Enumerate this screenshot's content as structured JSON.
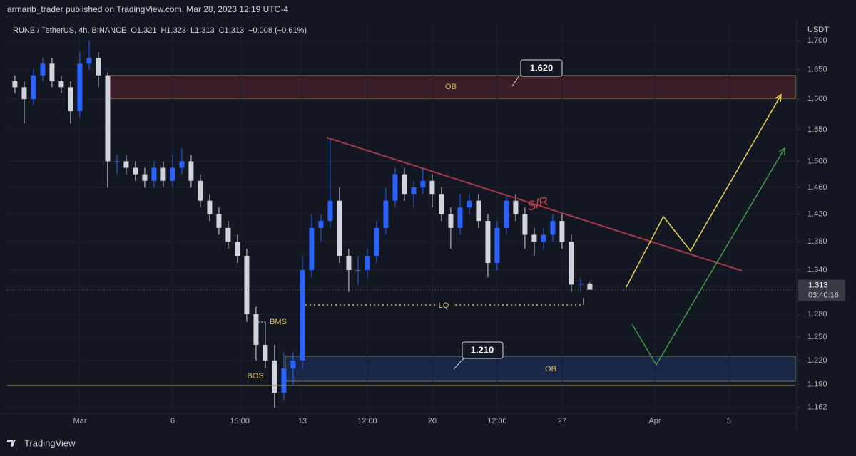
{
  "header": {
    "published": "armanb_trader published on TradingView.com, Mar 28, 2023 12:19 UTC-4"
  },
  "chart_data": {
    "type": "candlestick",
    "symbol": "RUNE / TetherUS, 4h, BINANCE",
    "ohlc_legend": [
      "O1.321",
      "H1.323",
      "L1.313",
      "C1.313",
      "−0.008 (−0.61%)"
    ],
    "currency": "USDT",
    "x": [
      -3.5,
      -3,
      -2.5,
      -2,
      -1.5,
      -1,
      -0.5,
      0,
      0.5,
      1,
      1.5,
      2,
      2.5,
      3,
      3.5,
      4,
      4.5,
      5,
      5.5,
      6,
      6.5,
      7,
      7.5,
      8,
      8.5,
      9,
      9.5,
      10,
      10.5,
      11,
      11.5,
      12,
      12.5,
      13,
      13.5,
      14,
      14.5,
      15,
      15.5,
      16,
      16.5,
      17,
      17.5,
      18,
      18.5,
      19,
      19.5,
      20,
      20.5,
      21,
      21.5,
      22,
      22.5,
      23,
      23.5,
      24,
      24.5,
      25,
      25.5,
      26,
      26.5,
      27,
      27.5
    ],
    "open": [
      1.63,
      1.62,
      1.6,
      1.64,
      1.66,
      1.63,
      1.62,
      1.58,
      1.66,
      1.67,
      1.64,
      1.5,
      1.5,
      1.49,
      1.48,
      1.47,
      1.49,
      1.47,
      1.49,
      1.5,
      1.47,
      1.44,
      1.42,
      1.4,
      1.38,
      1.36,
      1.28,
      1.24,
      1.22,
      1.18,
      1.21,
      1.22,
      1.34,
      1.4,
      1.41,
      1.44,
      1.36,
      1.34,
      1.34,
      1.36,
      1.4,
      1.44,
      1.48,
      1.45,
      1.46,
      1.47,
      1.45,
      1.42,
      1.4,
      1.43,
      1.44,
      1.41,
      1.35,
      1.4,
      1.44,
      1.42,
      1.39,
      1.38,
      1.39,
      1.41,
      1.38,
      1.32,
      1.321
    ],
    "high": [
      1.64,
      1.63,
      1.65,
      1.67,
      1.67,
      1.64,
      1.63,
      1.68,
      1.7,
      1.68,
      1.645,
      1.51,
      1.51,
      1.5,
      1.49,
      1.5,
      1.5,
      1.51,
      1.52,
      1.51,
      1.48,
      1.45,
      1.43,
      1.41,
      1.39,
      1.37,
      1.29,
      1.27,
      1.24,
      1.23,
      1.23,
      1.36,
      1.42,
      1.42,
      1.535,
      1.46,
      1.37,
      1.36,
      1.37,
      1.41,
      1.46,
      1.49,
      1.49,
      1.47,
      1.49,
      1.48,
      1.46,
      1.43,
      1.45,
      1.45,
      1.45,
      1.42,
      1.41,
      1.45,
      1.45,
      1.43,
      1.4,
      1.4,
      1.42,
      1.42,
      1.39,
      1.33,
      1.323
    ],
    "low": [
      1.61,
      1.56,
      1.59,
      1.63,
      1.62,
      1.61,
      1.56,
      1.57,
      1.65,
      1.62,
      1.46,
      1.48,
      1.48,
      1.47,
      1.46,
      1.46,
      1.46,
      1.46,
      1.48,
      1.46,
      1.43,
      1.41,
      1.39,
      1.37,
      1.35,
      1.27,
      1.22,
      1.21,
      1.162,
      1.17,
      1.19,
      1.21,
      1.33,
      1.38,
      1.4,
      1.35,
      1.31,
      1.32,
      1.33,
      1.35,
      1.39,
      1.43,
      1.44,
      1.43,
      1.45,
      1.43,
      1.41,
      1.37,
      1.39,
      1.42,
      1.4,
      1.33,
      1.34,
      1.39,
      1.41,
      1.37,
      1.36,
      1.37,
      1.38,
      1.37,
      1.31,
      1.31,
      1.313
    ],
    "close": [
      1.62,
      1.6,
      1.64,
      1.66,
      1.63,
      1.62,
      1.58,
      1.66,
      1.67,
      1.64,
      1.5,
      1.5,
      1.49,
      1.48,
      1.47,
      1.49,
      1.47,
      1.49,
      1.5,
      1.47,
      1.44,
      1.42,
      1.4,
      1.38,
      1.36,
      1.28,
      1.24,
      1.22,
      1.18,
      1.21,
      1.22,
      1.34,
      1.4,
      1.41,
      1.44,
      1.36,
      1.34,
      1.34,
      1.36,
      1.4,
      1.44,
      1.48,
      1.45,
      1.46,
      1.47,
      1.45,
      1.42,
      1.4,
      1.43,
      1.44,
      1.41,
      1.35,
      1.4,
      1.44,
      1.42,
      1.39,
      1.38,
      1.39,
      1.41,
      1.38,
      1.32,
      1.321,
      1.313
    ],
    "up_color": "#2962ff",
    "down_color": "#d1d4dc",
    "log_scale": true,
    "grid": true,
    "xlim": [
      -3.92,
      38.58
    ],
    "xticks": [
      {
        "value": 0,
        "label": "Mar"
      },
      {
        "value": 5,
        "label": "6"
      },
      {
        "value": 8.625,
        "label": "15:00"
      },
      {
        "value": 12,
        "label": "13"
      },
      {
        "value": 15.5,
        "label": "12:00"
      },
      {
        "value": 19,
        "label": "20"
      },
      {
        "value": 22.5,
        "label": "12:00"
      },
      {
        "value": 26,
        "label": "27"
      },
      {
        "value": 31,
        "label": "Apr"
      },
      {
        "value": 35,
        "label": "5"
      }
    ],
    "ylim": [
      1.155,
      1.709
    ],
    "yticks": [
      {
        "value": 1.7,
        "label": "1.700"
      },
      {
        "value": 1.65,
        "label": "1.650"
      },
      {
        "value": 1.6,
        "label": "1.600"
      },
      {
        "value": 1.55,
        "label": "1.550"
      },
      {
        "value": 1.5,
        "label": "1.500"
      },
      {
        "value": 1.46,
        "label": "1.460"
      },
      {
        "value": 1.42,
        "label": "1.420"
      },
      {
        "value": 1.38,
        "label": "1.380"
      },
      {
        "value": 1.34,
        "label": "1.340"
      },
      {
        "value": 1.28,
        "label": "1.280"
      },
      {
        "value": 1.25,
        "label": "1.250"
      },
      {
        "value": 1.22,
        "label": "1.220"
      },
      {
        "value": 1.19,
        "label": "1.190"
      },
      1.162
    ],
    "price_tag": {
      "value": 1.313,
      "countdown": "03:40:16"
    },
    "annotations": {
      "ob_top": "OB",
      "ob_bottom": "OB",
      "top_callout": "1.620",
      "bottom_callout": "1.210",
      "lq": "LQ",
      "sr": "S/R",
      "bms": "BMS",
      "bos": "BOS"
    }
  },
  "footer": {
    "brand": "TradingView"
  }
}
